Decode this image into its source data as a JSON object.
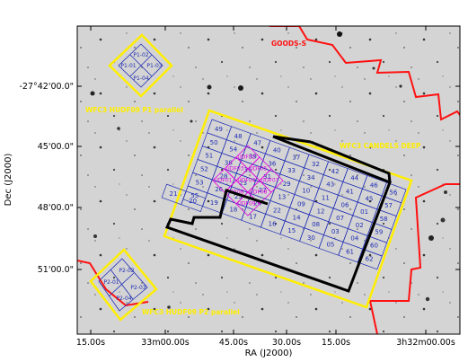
{
  "colors": {
    "goods_outline": "#ff1010",
    "yellow_outline": "#ffee00",
    "tile_grid": "#1f2db5",
    "udf_grid": "#e000e0",
    "deep_outline": "#000000",
    "background_sky": "#d4d4d4"
  },
  "axes": {
    "xlabel": "RA (J2000)",
    "ylabel": "Dec (J2000)",
    "xticks": [
      "15.00s",
      "33m00.00s",
      "45.00s",
      "30.00s",
      "15.00s",
      "3h32m00.00s"
    ],
    "yticks": [
      "-27°42'00.0\"",
      "45'00.0\"",
      "48'00.0\"",
      "51'00.0\""
    ]
  },
  "fields": {
    "goods": "GOODS-S",
    "candels_deep": "WFC3 CANDELS DEEP",
    "hudf_p1": "WFC3 HUDF09 P1 parallel",
    "hudf_p2": "WFC3 HUDF09 P2 parallel"
  },
  "parallel_p1": [
    "P1-02",
    "P1-01",
    "P1-03",
    "P1-04"
  ],
  "parallel_p2": [
    "P2-02",
    "P2-01",
    "P2-03",
    "P2-04"
  ],
  "udf_tiles": [
    "UDF02",
    "UDF03",
    "UDF01",
    "UDF05",
    "UDF04",
    "UDF06",
    "UDF07",
    "UDF08",
    "UDF09"
  ],
  "tiles": [
    "49",
    "48",
    "47",
    "40",
    "37",
    "32",
    "42",
    "44",
    "46",
    "56",
    "50",
    "54",
    "39",
    "36",
    "33",
    "34",
    "43",
    "41",
    "45",
    "57",
    "51",
    "38",
    "35",
    "31",
    "29",
    "10",
    "11",
    "06",
    "01",
    "58",
    "52",
    "28",
    "23",
    "27",
    "13",
    "09",
    "12",
    "07",
    "02",
    "59",
    "53",
    "26",
    "25",
    "24",
    "22",
    "14",
    "08",
    "03",
    "04",
    "60",
    "55",
    "19",
    "18",
    "17",
    "16",
    "15",
    "30",
    "05",
    "61",
    "62",
    "21",
    "20"
  ]
}
